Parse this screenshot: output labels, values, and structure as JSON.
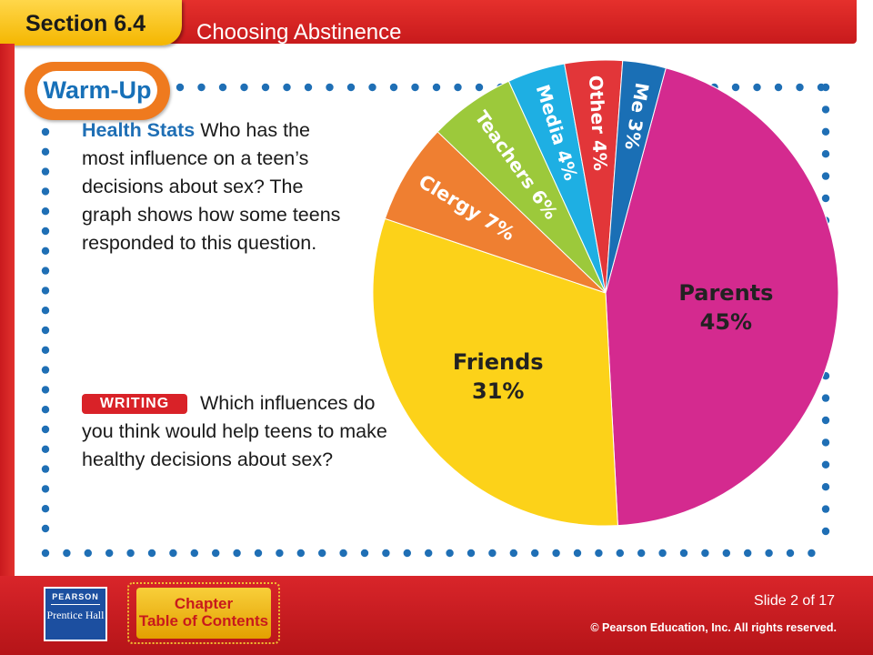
{
  "header": {
    "section": "Section 6.4",
    "title": "Choosing Abstinence"
  },
  "warmup": {
    "badge": "Warm-Up"
  },
  "prompt": {
    "lead": "Health Stats",
    "text": "Who has the most influence on a teen’s decisions about sex? The graph shows how some teens responded to this question."
  },
  "writing": {
    "badge": "WRITING",
    "text": "Which influences do you think would help teens to make healthy decisions about sex?"
  },
  "chart_data": {
    "type": "pie",
    "categories": [
      "Parents",
      "Friends",
      "Clergy",
      "Teachers",
      "Media",
      "Other",
      "Me"
    ],
    "values": [
      45,
      31,
      7,
      6,
      4,
      4,
      3
    ],
    "labels": [
      "Parents 45%",
      "Friends 31%",
      "Clergy 7%",
      "Teachers 6%",
      "Media 4%",
      "Other 4%",
      "Me 3%"
    ],
    "colors": [
      "#d42a8f",
      "#fcd219",
      "#ef7f31",
      "#9cc93b",
      "#1eafe3",
      "#e23639",
      "#1a6fb5"
    ]
  },
  "footer": {
    "logo_name": "PEARSON",
    "logo_sub": "Prentice Hall",
    "toc_line1": "Chapter",
    "toc_line2": "Table of Contents",
    "slide": "Slide 2 of 17",
    "copyright": "© Pearson Education, Inc. All rights reserved."
  }
}
